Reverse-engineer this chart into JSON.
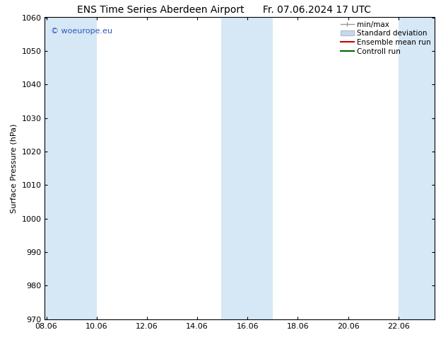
{
  "title_left": "ENS Time Series Aberdeen Airport",
  "title_right": "Fr. 07.06.2024 17 UTC",
  "ylabel": "Surface Pressure (hPa)",
  "ylim": [
    970,
    1060
  ],
  "yticks": [
    970,
    980,
    990,
    1000,
    1010,
    1020,
    1030,
    1040,
    1050,
    1060
  ],
  "xlim_min": 8.0,
  "xlim_max": 23.5,
  "xtick_labels": [
    "08.06",
    "10.06",
    "12.06",
    "14.06",
    "16.06",
    "18.06",
    "20.06",
    "22.06"
  ],
  "xtick_positions": [
    8.06,
    10.06,
    12.06,
    14.06,
    16.06,
    18.06,
    20.06,
    22.06
  ],
  "shaded_bands": [
    {
      "x_start": 8.0,
      "x_end": 10.06
    },
    {
      "x_start": 15.0,
      "x_end": 17.06
    },
    {
      "x_start": 22.06,
      "x_end": 23.5
    }
  ],
  "shade_color": "#d6e8f5",
  "watermark_text": "© woeurope.eu",
  "watermark_color": "#3355bb",
  "legend_items": [
    {
      "label": "min/max",
      "color": "#999999",
      "style": "errorbar"
    },
    {
      "label": "Standard deviation",
      "color": "#c8d8ec",
      "style": "bar"
    },
    {
      "label": "Ensemble mean run",
      "color": "#cc0000",
      "style": "line"
    },
    {
      "label": "Controll run",
      "color": "#006600",
      "style": "line"
    }
  ],
  "bg_color": "#ffffff",
  "plot_bg_color": "#ffffff",
  "title_fontsize": 10,
  "axis_label_fontsize": 8,
  "tick_fontsize": 8,
  "legend_fontsize": 7.5
}
